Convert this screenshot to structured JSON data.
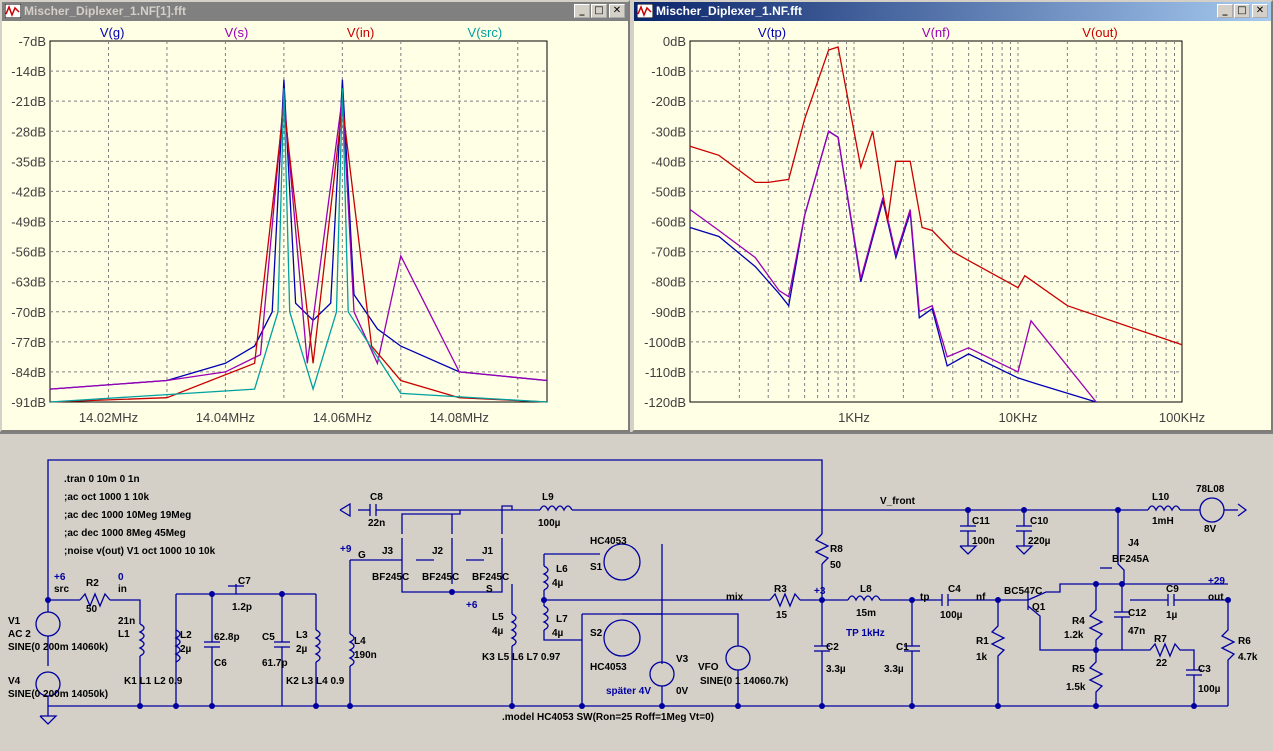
{
  "windows": {
    "left": {
      "title": "Mischer_Diplexer_1.NF[1].fft",
      "traces": [
        "V(g)",
        "V(s)",
        "V(in)",
        "V(src)"
      ],
      "y_ticks": [
        "-7dB",
        "-14dB",
        "-21dB",
        "-28dB",
        "-35dB",
        "-42dB",
        "-49dB",
        "-56dB",
        "-63dB",
        "-70dB",
        "-77dB",
        "-84dB",
        "-91dB"
      ],
      "x_ticks": [
        "14.02MHz",
        "14.04MHz",
        "14.06MHz",
        "14.08MHz"
      ]
    },
    "right": {
      "title": "Mischer_Diplexer_1.NF.fft",
      "traces": [
        "V(tp)",
        "V(nf)",
        "V(out)"
      ],
      "y_ticks": [
        "0dB",
        "-10dB",
        "-20dB",
        "-30dB",
        "-40dB",
        "-50dB",
        "-60dB",
        "-70dB",
        "-80dB",
        "-90dB",
        "-100dB",
        "-110dB",
        "-120dB"
      ],
      "x_ticks": [
        "1KHz",
        "10KHz",
        "100KHz"
      ]
    }
  },
  "colors": {
    "blue": "#0000b4",
    "purple": "#9a00b4",
    "red": "#c80000",
    "cyan": "#00a0a0",
    "wire": "#0000a0"
  },
  "chart_data": [
    {
      "type": "line",
      "title": "",
      "xlabel": "",
      "ylabel": "",
      "xlim": [
        14.01,
        14.095
      ],
      "ylim": [
        -91,
        -7
      ],
      "x_unit": "MHz",
      "y_unit": "dB",
      "grid": true,
      "legend_position": "top",
      "series": [
        {
          "name": "V(g)",
          "x": [
            14.01,
            14.03,
            14.04,
            14.045,
            14.048,
            14.05,
            14.052,
            14.055,
            14.058,
            14.06,
            14.062,
            14.066,
            14.07,
            14.08,
            14.095
          ],
          "values": [
            -88,
            -86,
            -82,
            -78,
            -70,
            -16,
            -68,
            -72,
            -68,
            -16,
            -66,
            -74,
            -78,
            -84,
            -86
          ]
        },
        {
          "name": "V(s)",
          "x": [
            14.01,
            14.03,
            14.04,
            14.046,
            14.05,
            14.054,
            14.06,
            14.062,
            14.066,
            14.07,
            14.08,
            14.095
          ],
          "values": [
            -88,
            -86,
            -84,
            -80,
            -20,
            -82,
            -20,
            -70,
            -82,
            -57,
            -84,
            -86
          ]
        },
        {
          "name": "V(in)",
          "x": [
            14.01,
            14.03,
            14.045,
            14.05,
            14.055,
            14.06,
            14.065,
            14.07,
            14.08,
            14.095
          ],
          "values": [
            -91,
            -90,
            -82,
            -22,
            -82,
            -22,
            -78,
            -86,
            -90,
            -91
          ]
        },
        {
          "name": "V(src)",
          "x": [
            14.01,
            14.045,
            14.049,
            14.05,
            14.051,
            14.055,
            14.059,
            14.06,
            14.061,
            14.07,
            14.095
          ],
          "values": [
            -91,
            -88,
            -70,
            -18,
            -70,
            -88,
            -70,
            -18,
            -70,
            -89,
            -91
          ]
        }
      ]
    },
    {
      "type": "line",
      "title": "",
      "xlabel": "",
      "ylabel": "",
      "xlim": [
        100,
        100000
      ],
      "ylim": [
        -120,
        0
      ],
      "x_scale": "log",
      "x_unit": "Hz",
      "y_unit": "dB",
      "grid": true,
      "legend_position": "top",
      "series": [
        {
          "name": "V(tp)",
          "x": [
            100,
            150,
            250,
            350,
            400,
            500,
            700,
            800,
            1100,
            1500,
            1800,
            2200,
            2500,
            3000,
            3700,
            5000,
            10000,
            13000,
            30000
          ],
          "values": [
            -62,
            -65,
            -75,
            -84,
            -88,
            -58,
            -30,
            -32,
            -80,
            -53,
            -72,
            -57,
            -92,
            -89,
            -108,
            -104,
            -112,
            -114,
            -120
          ]
        },
        {
          "name": "V(nf)",
          "x": [
            100,
            150,
            250,
            350,
            400,
            500,
            700,
            800,
            1100,
            1500,
            1800,
            2200,
            2500,
            3000,
            3700,
            5000,
            10000,
            12000,
            30000
          ],
          "values": [
            -56,
            -63,
            -72,
            -83,
            -85,
            -58,
            -30,
            -32,
            -79,
            -52,
            -71,
            -56,
            -90,
            -88,
            -105,
            -102,
            -110,
            -93,
            -120
          ]
        },
        {
          "name": "V(out)",
          "x": [
            100,
            150,
            250,
            300,
            400,
            500,
            700,
            800,
            1100,
            1300,
            1600,
            1800,
            2200,
            2600,
            3000,
            4000,
            5000,
            10000,
            11000,
            20000,
            100000
          ],
          "values": [
            -35,
            -38,
            -47,
            -47,
            -46,
            -26,
            -3,
            -2,
            -42,
            -30,
            -60,
            -40,
            -40,
            -62,
            -63,
            -70,
            -73,
            -82,
            -78,
            -88,
            -101
          ]
        }
      ]
    }
  ],
  "schematic": {
    "directives": [
      ".tran 0 10m 0 1n",
      ";ac oct 1000 1 10k",
      ";ac dec 1000 10Meg 19Meg",
      ";ac dec 1000 8Meg 45Meg",
      ";noise v(out) V1 oct 1000 10 10k"
    ],
    "model": ".model HC4053 SW(Ron=25 Roff=1Meg Vt=0)",
    "labels": {
      "V1": "V1",
      "V1_val": "AC 2",
      "V1_sine": "SINE(0 200m 14060k)",
      "V4": "V4",
      "V4_sine": "SINE(0 200m 14050k)",
      "src_v": "+6",
      "src": "src",
      "in_v": "0",
      "in": "in",
      "R2": "R2",
      "R2_val": "50",
      "L1": "L1",
      "L1_val": "21n",
      "K1": "K1 L1 L2 0.9",
      "L2": "L2",
      "L2_val": "2µ",
      "C6": "C6",
      "C6_val": "62.8p",
      "C7": "C7",
      "C7_val": "1.2p",
      "C5": "C5",
      "C5_val": "61.7p",
      "L3": "L3",
      "L3_val": "2µ",
      "K2": "K2 L3 L4 0.9",
      "L4": "L4",
      "L4_val": "190n",
      "g_v": "+9",
      "g": "G",
      "C8": "C8",
      "C8_val": "22n",
      "J3": "J3",
      "J2": "J2",
      "J1": "J1",
      "jfet": "BF245C",
      "s": "S",
      "s_v": "+6",
      "L5": "L5",
      "L5_val": "4µ",
      "K3": "K3 L5 L6 L7 0.97",
      "L6": "L6",
      "L6_val": "4µ",
      "L7": "L7",
      "L7_val": "4µ",
      "L9": "L9",
      "L9_val": "100µ",
      "HC_top": "HC4053",
      "S1": "S1",
      "S2": "S2",
      "HC_bot": "HC4053",
      "V3": "V3",
      "V3_val": "0V",
      "spaeter": "später 4V",
      "VFO": "VFO",
      "VFO_sine": "SINE(0 1 14060.7k)",
      "R8": "R8",
      "R8_val": "50",
      "mix": "mix",
      "R3": "R3",
      "R3_val": "15",
      "p3": "+3",
      "C2": "C2",
      "C2_val": "3.3µ",
      "L8": "L8",
      "L8_val": "15m",
      "TP": "TP 1kHz",
      "tp": "tp",
      "C1": "C1",
      "C1_val": "3.3µ",
      "C4": "C4",
      "C4_val": "100µ",
      "nf": "nf",
      "R1": "R1",
      "R1_val": "1k",
      "Q1_type": "BC547C",
      "Q1": "Q1",
      "R4": "R4",
      "R4_val": "1.2k",
      "R5": "R5",
      "R5_val": "1.5k",
      "C12": "C12",
      "C12_val": "47n",
      "R7": "R7",
      "R7_val": "22",
      "C3": "C3",
      "C3_val": "100µ",
      "J4": "J4",
      "J4_type": "BF245A",
      "C9": "C9",
      "C9_val": "1µ",
      "out_v": "+29",
      "out": "out",
      "R6": "R6",
      "R6_val": "4.7k",
      "vfront": "V_front",
      "C11": "C11",
      "C11_val": "100n",
      "C10": "C10",
      "C10_val": "220µ",
      "L10": "L10",
      "L10_val": "1mH",
      "reg": "78L08",
      "reg_v": "8V"
    }
  }
}
